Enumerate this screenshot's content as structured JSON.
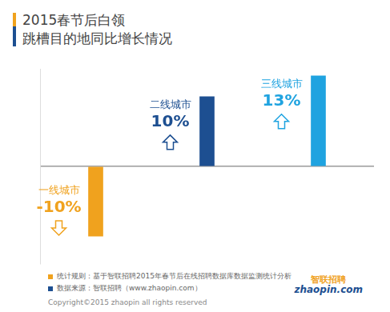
{
  "chart_data": {
    "type": "bar",
    "title": [
      "2015春节后白领",
      "跳槽目的地同比增长情况"
    ],
    "categories": [
      "一线城市",
      "二线城市",
      "三线城市"
    ],
    "values": [
      -10,
      10,
      13
    ],
    "value_labels": [
      "-10%",
      "10%",
      "13%"
    ],
    "colors": [
      "#f0a21e",
      "#1d4f91",
      "#1fa3e0"
    ],
    "data_labels": true,
    "ylim": [
      -14,
      14
    ],
    "yticks": [
      0
    ],
    "grid": true,
    "tick_labels": false
  },
  "footnotes": [
    {
      "text": "统计规则：基于智联招聘2015年春节后在线招聘数据库数据监测统计分析",
      "color": "#f0a21e"
    },
    {
      "text": "数据来源：智联招聘（www.zhaopin.com）",
      "color": "#1d4f91"
    }
  ],
  "copyright": "Copyright©2015 zhaopin all rights reserved",
  "logo": [
    "智联招聘",
    "zhaopin.com"
  ]
}
